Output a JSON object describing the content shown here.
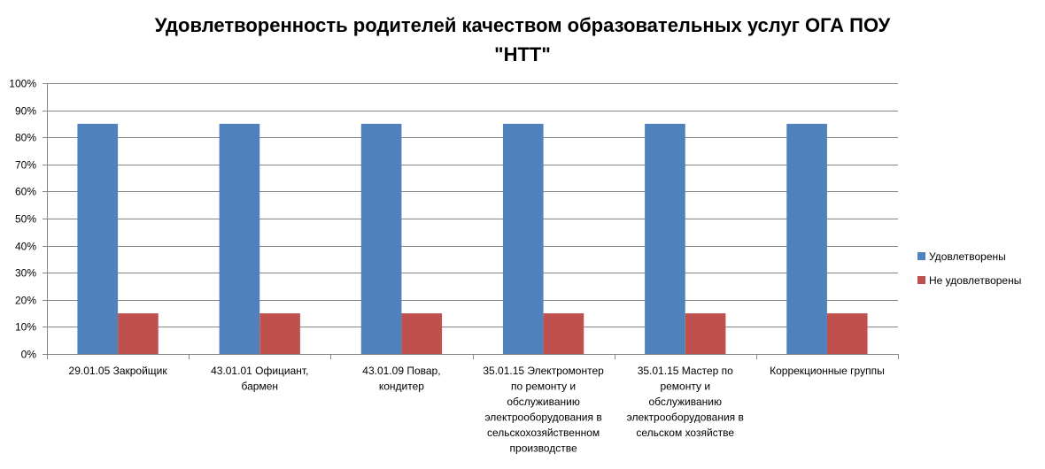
{
  "colors": {
    "series1": "#4F81BD",
    "series2": "#C0504D",
    "gridline": "#868686",
    "axis": "#868686"
  },
  "chart_data": {
    "type": "bar",
    "title": "Удовлетворенность родителей качеством образовательных услуг ОГА ПОУ \"НТТ\"",
    "title_lines": [
      "Удовлетворенность родителей качеством образовательных услуг ОГА ПОУ",
      "\"НТТ\""
    ],
    "categories": [
      "29.01.05  Закройщик",
      "43.01.01   Официант, бармен",
      "43.01.09  Повар, кондитер",
      "35.01.15  Электромонтер по ремонту и обслуживанию электрооборудования в сельскохозяйственном производстве",
      "35.01.15  Мастер по ремонту и обслуживанию электрооборудования в сельском хозяйстве",
      "Коррекционные группы"
    ],
    "category_lines": [
      [
        "29.01.05  Закройщик"
      ],
      [
        "43.01.01   Официант,",
        "бармен"
      ],
      [
        "43.01.09  Повар,",
        "кондитер"
      ],
      [
        "35.01.15  Электромонтер",
        "по ремонту и",
        "обслуживанию",
        "электрооборудования в",
        "сельскохозяйственном",
        "производстве"
      ],
      [
        "35.01.15  Мастер по",
        "ремонту и",
        "обслуживанию",
        "электрооборудования в",
        "сельском хозяйстве"
      ],
      [
        "Коррекционные группы"
      ]
    ],
    "series": [
      {
        "name": "Удовлетворены",
        "values": [
          0.85,
          0.85,
          0.85,
          0.85,
          0.85,
          0.85
        ]
      },
      {
        "name": "Не удовлетворены",
        "values": [
          0.15,
          0.15,
          0.15,
          0.15,
          0.15,
          0.15
        ]
      }
    ],
    "ylim": [
      0,
      1
    ],
    "yticks": [
      0,
      0.1,
      0.2,
      0.3,
      0.4,
      0.5,
      0.6,
      0.7,
      0.8,
      0.9,
      1.0
    ],
    "ytick_labels": [
      "0%",
      "10%",
      "20%",
      "30%",
      "40%",
      "50%",
      "60%",
      "70%",
      "80%",
      "90%",
      "100%"
    ],
    "grid": true,
    "legend_position": "right",
    "xlabel": "",
    "ylabel": ""
  }
}
